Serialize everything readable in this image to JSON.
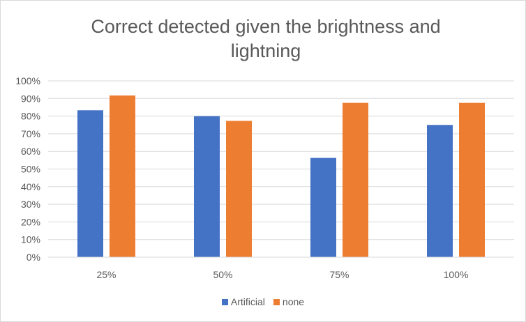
{
  "chart_data": {
    "type": "bar",
    "title": "Correct detected given the brightness and lightning",
    "categories": [
      "25%",
      "50%",
      "75%",
      "100%"
    ],
    "series": [
      {
        "name": "Artificial",
        "color": "#4472c4",
        "values": [
          83.3,
          80.0,
          56.3,
          75.0
        ]
      },
      {
        "name": "none",
        "color": "#ed7d31",
        "values": [
          91.7,
          77.3,
          87.5,
          87.5
        ]
      }
    ],
    "yticks": [
      "0%",
      "10%",
      "20%",
      "30%",
      "40%",
      "50%",
      "60%",
      "70%",
      "80%",
      "90%",
      "100%"
    ],
    "ylim": [
      0,
      100
    ],
    "grid": true,
    "legend_position": "bottom"
  }
}
